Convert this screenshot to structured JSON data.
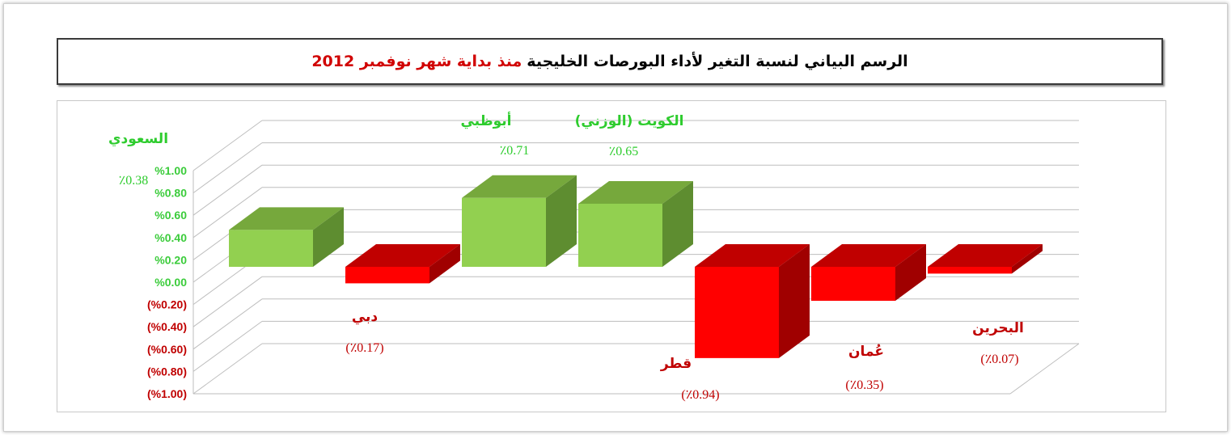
{
  "title": {
    "main": "الرسم البياني لنسبة التغير لأداء البورصات الخليجية",
    "highlight": "منذ بداية شهر نوفمبر 2012"
  },
  "colors": {
    "positive_front": "#92d050",
    "positive_top": "#76a83c",
    "positive_side": "#5e8d30",
    "negative_front": "#ff0000",
    "negative_top": "#c00000",
    "negative_side": "#a00000",
    "positive_text": "#2ecc2e",
    "negative_text": "#c00000"
  },
  "chart_data": {
    "type": "bar",
    "categories": [
      "السعودي",
      "دبي",
      "أبوظبي",
      "الكويت (الوزني)",
      "قطر",
      "عُمان",
      "البحرين"
    ],
    "values": [
      0.38,
      -0.17,
      0.71,
      0.65,
      -0.94,
      -0.35,
      -0.07
    ],
    "value_labels": [
      "٪0.38",
      "(٪0.17)",
      "٪0.71",
      "٪0.65",
      "(٪0.94)",
      "(٪0.35)",
      "(٪0.07)"
    ],
    "ylim": [
      -1.0,
      1.0
    ],
    "yticks": [
      1.0,
      0.8,
      0.6,
      0.4,
      0.2,
      0.0,
      -0.2,
      -0.4,
      -0.6,
      -0.8,
      -1.0
    ],
    "ytick_labels": [
      "%1.00",
      "%0.80",
      "%0.60",
      "%0.40",
      "%0.20",
      "%0.00",
      "(%0.20)",
      "(%0.40)",
      "(%0.60)",
      "(%0.80)",
      "(%1.00)"
    ],
    "grid": true,
    "style": "3d-column"
  }
}
